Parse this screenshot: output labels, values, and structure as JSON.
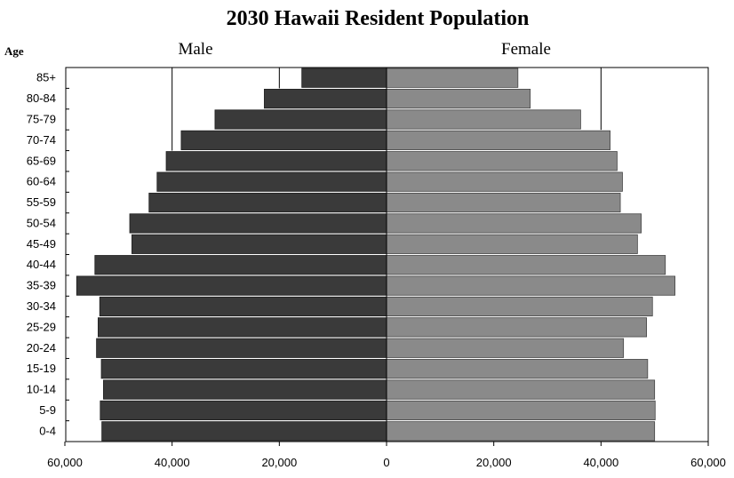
{
  "chart_data": {
    "type": "bar",
    "orientation": "horizontal",
    "layout": "population-pyramid",
    "title": "2030 Hawaii Resident Population",
    "yaxis_title": "Age",
    "categories": [
      "85+",
      "80-84",
      "75-79",
      "70-74",
      "65-69",
      "60-64",
      "55-59",
      "50-54",
      "45-49",
      "40-44",
      "35-39",
      "30-34",
      "25-29",
      "20-24",
      "15-19",
      "10-14",
      "5-9",
      "0-4"
    ],
    "series": [
      {
        "name": "Male",
        "color": "#3a3a3a",
        "values": [
          15800,
          22800,
          32000,
          38300,
          41100,
          42800,
          44300,
          47900,
          47500,
          54400,
          57800,
          53500,
          53800,
          54100,
          53200,
          52800,
          53400,
          53100
        ]
      },
      {
        "name": "Female",
        "color": "#8a8a8a",
        "values": [
          24500,
          26800,
          36200,
          41700,
          43000,
          44000,
          43600,
          47500,
          46800,
          52000,
          53800,
          49600,
          48500,
          44200,
          48700,
          50000,
          50100,
          50000
        ]
      }
    ],
    "xlim": [
      -60000,
      60000
    ],
    "xticks": [
      -60000,
      -40000,
      -20000,
      0,
      20000,
      40000,
      60000
    ],
    "xtick_labels": [
      "60,000",
      "40,000",
      "20,000",
      "0",
      "20,000",
      "40,000",
      "60,000"
    ],
    "reference_lines": [
      {
        "x": -40000,
        "from_category": "85+",
        "to_category": "70-74"
      },
      {
        "x": -20000,
        "from_category": "85+",
        "to_category": "85+"
      },
      {
        "x": 40000,
        "from_category": "85+",
        "to_category": "75-79"
      }
    ],
    "grid": false,
    "legend": "none"
  }
}
